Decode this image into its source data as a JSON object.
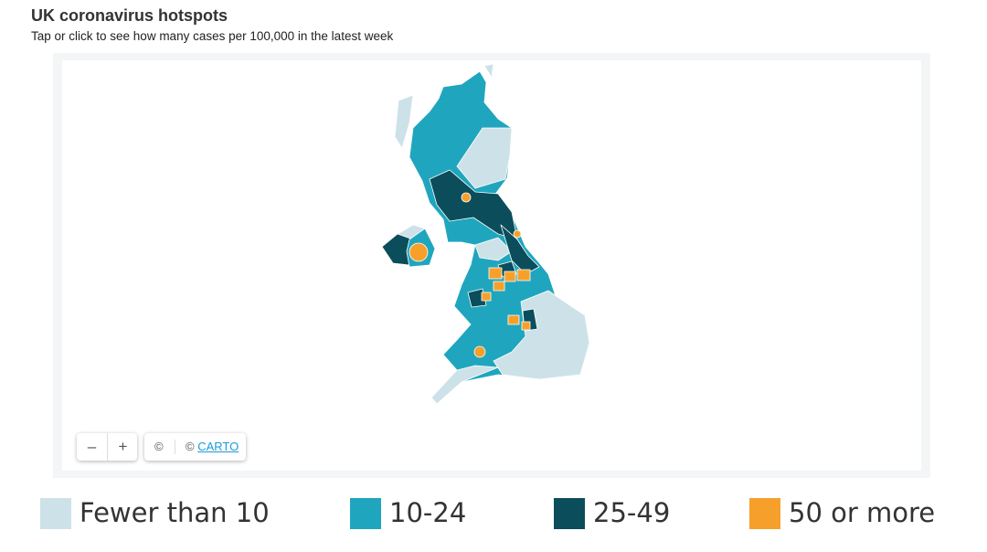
{
  "header": {
    "title": "UK coronavirus hotspots",
    "subtitle": "Tap or click to see how many cases per 100,000 in the latest week"
  },
  "map": {
    "zoom_out": "–",
    "zoom_in": "+",
    "attribution_symbol": "©",
    "attribution_prefix": "©",
    "attribution_link": "CARTO"
  },
  "legend": [
    {
      "label": "Fewer than 10",
      "color": "#cde2e8"
    },
    {
      "label": "10-24",
      "color": "#1fa6be"
    },
    {
      "label": "25-49",
      "color": "#0b4d5b"
    },
    {
      "label": "50 or more",
      "color": "#f6a02b"
    }
  ]
}
